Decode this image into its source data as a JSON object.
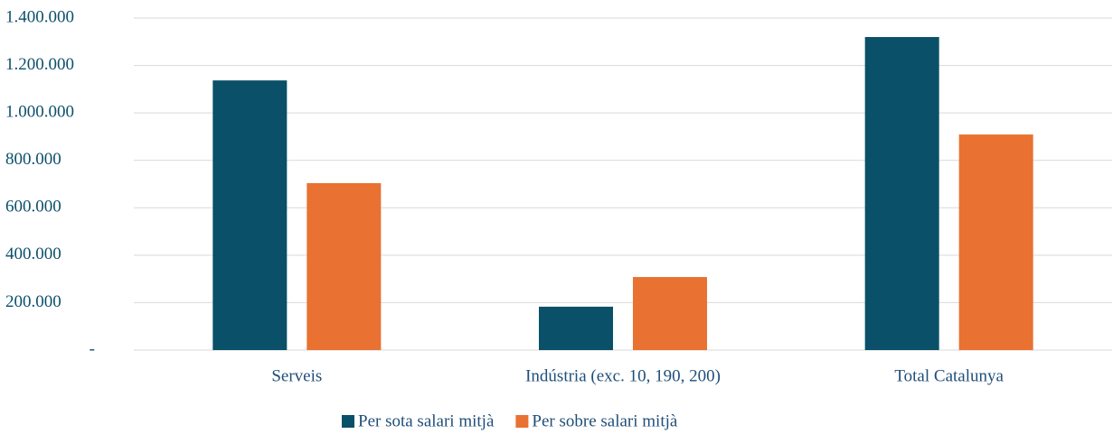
{
  "chart_data": {
    "type": "bar",
    "categories": [
      "Serveis",
      "Indústria (exc. 10, 190, 200)",
      "Total Catalunya"
    ],
    "series": [
      {
        "name": "Per sota salari mitjà",
        "color": "#0a5069",
        "values": [
          1137000,
          183000,
          1320000
        ]
      },
      {
        "name": "Per sobre salari mitjà",
        "color": "#e97132",
        "values": [
          704000,
          308000,
          909000
        ]
      }
    ],
    "ylim": [
      0,
      1400000
    ],
    "yticks": [
      {
        "value": 0,
        "label": "-"
      },
      {
        "value": 200000,
        "label": "200.000"
      },
      {
        "value": 400000,
        "label": "400.000"
      },
      {
        "value": 600000,
        "label": "600.000"
      },
      {
        "value": 800000,
        "label": "800.000"
      },
      {
        "value": 1000000,
        "label": "1.000.000"
      },
      {
        "value": 1200000,
        "label": "1.200.000"
      },
      {
        "value": 1400000,
        "label": "1.400.000"
      }
    ],
    "grid": true,
    "legend": "bottom"
  }
}
